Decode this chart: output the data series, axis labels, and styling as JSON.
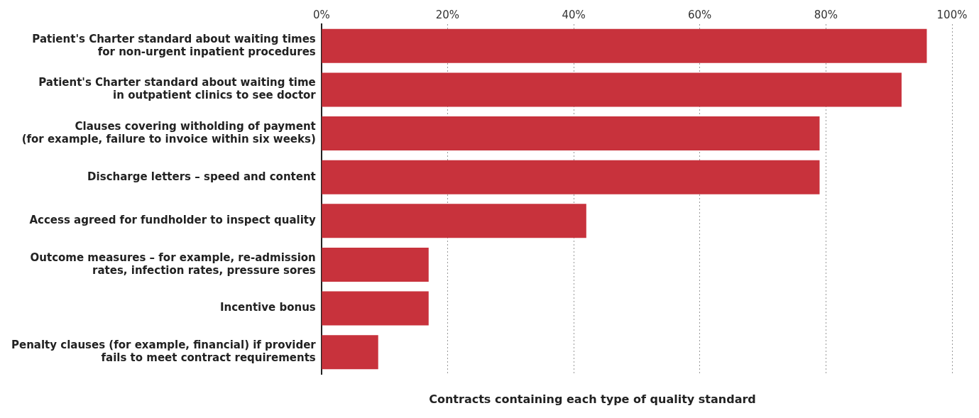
{
  "chart_data": {
    "type": "bar",
    "orientation": "horizontal",
    "xlabel": "Contracts containing each type of quality standard",
    "categories": [
      "Patient's Charter standard about waiting times\nfor non-urgent inpatient procedures",
      "Patient's Charter standard about waiting time\nin outpatient clinics to see doctor",
      "Clauses covering witholding of payment\n(for example, failure to invoice within six weeks)",
      "Discharge letters – speed and content",
      "Access agreed for fundholder to inspect quality",
      "Outcome measures – for example, re-admission\nrates, infection rates, pressure sores",
      "Incentive bonus",
      "Penalty clauses (for example, financial) if provider\nfails to meet contract requirements"
    ],
    "values": [
      96,
      92,
      79,
      79,
      42,
      17,
      17,
      9
    ],
    "color": "#c8323c",
    "xlim": [
      0,
      100
    ],
    "xticks": [
      {
        "value": 0,
        "label": "0%"
      },
      {
        "value": 20,
        "label": "20%"
      },
      {
        "value": 40,
        "label": "40%"
      },
      {
        "value": 60,
        "label": "60%"
      },
      {
        "value": 80,
        "label": "80%"
      },
      {
        "value": 100,
        "label": "100%"
      }
    ],
    "grid": "x",
    "legend": false
  }
}
